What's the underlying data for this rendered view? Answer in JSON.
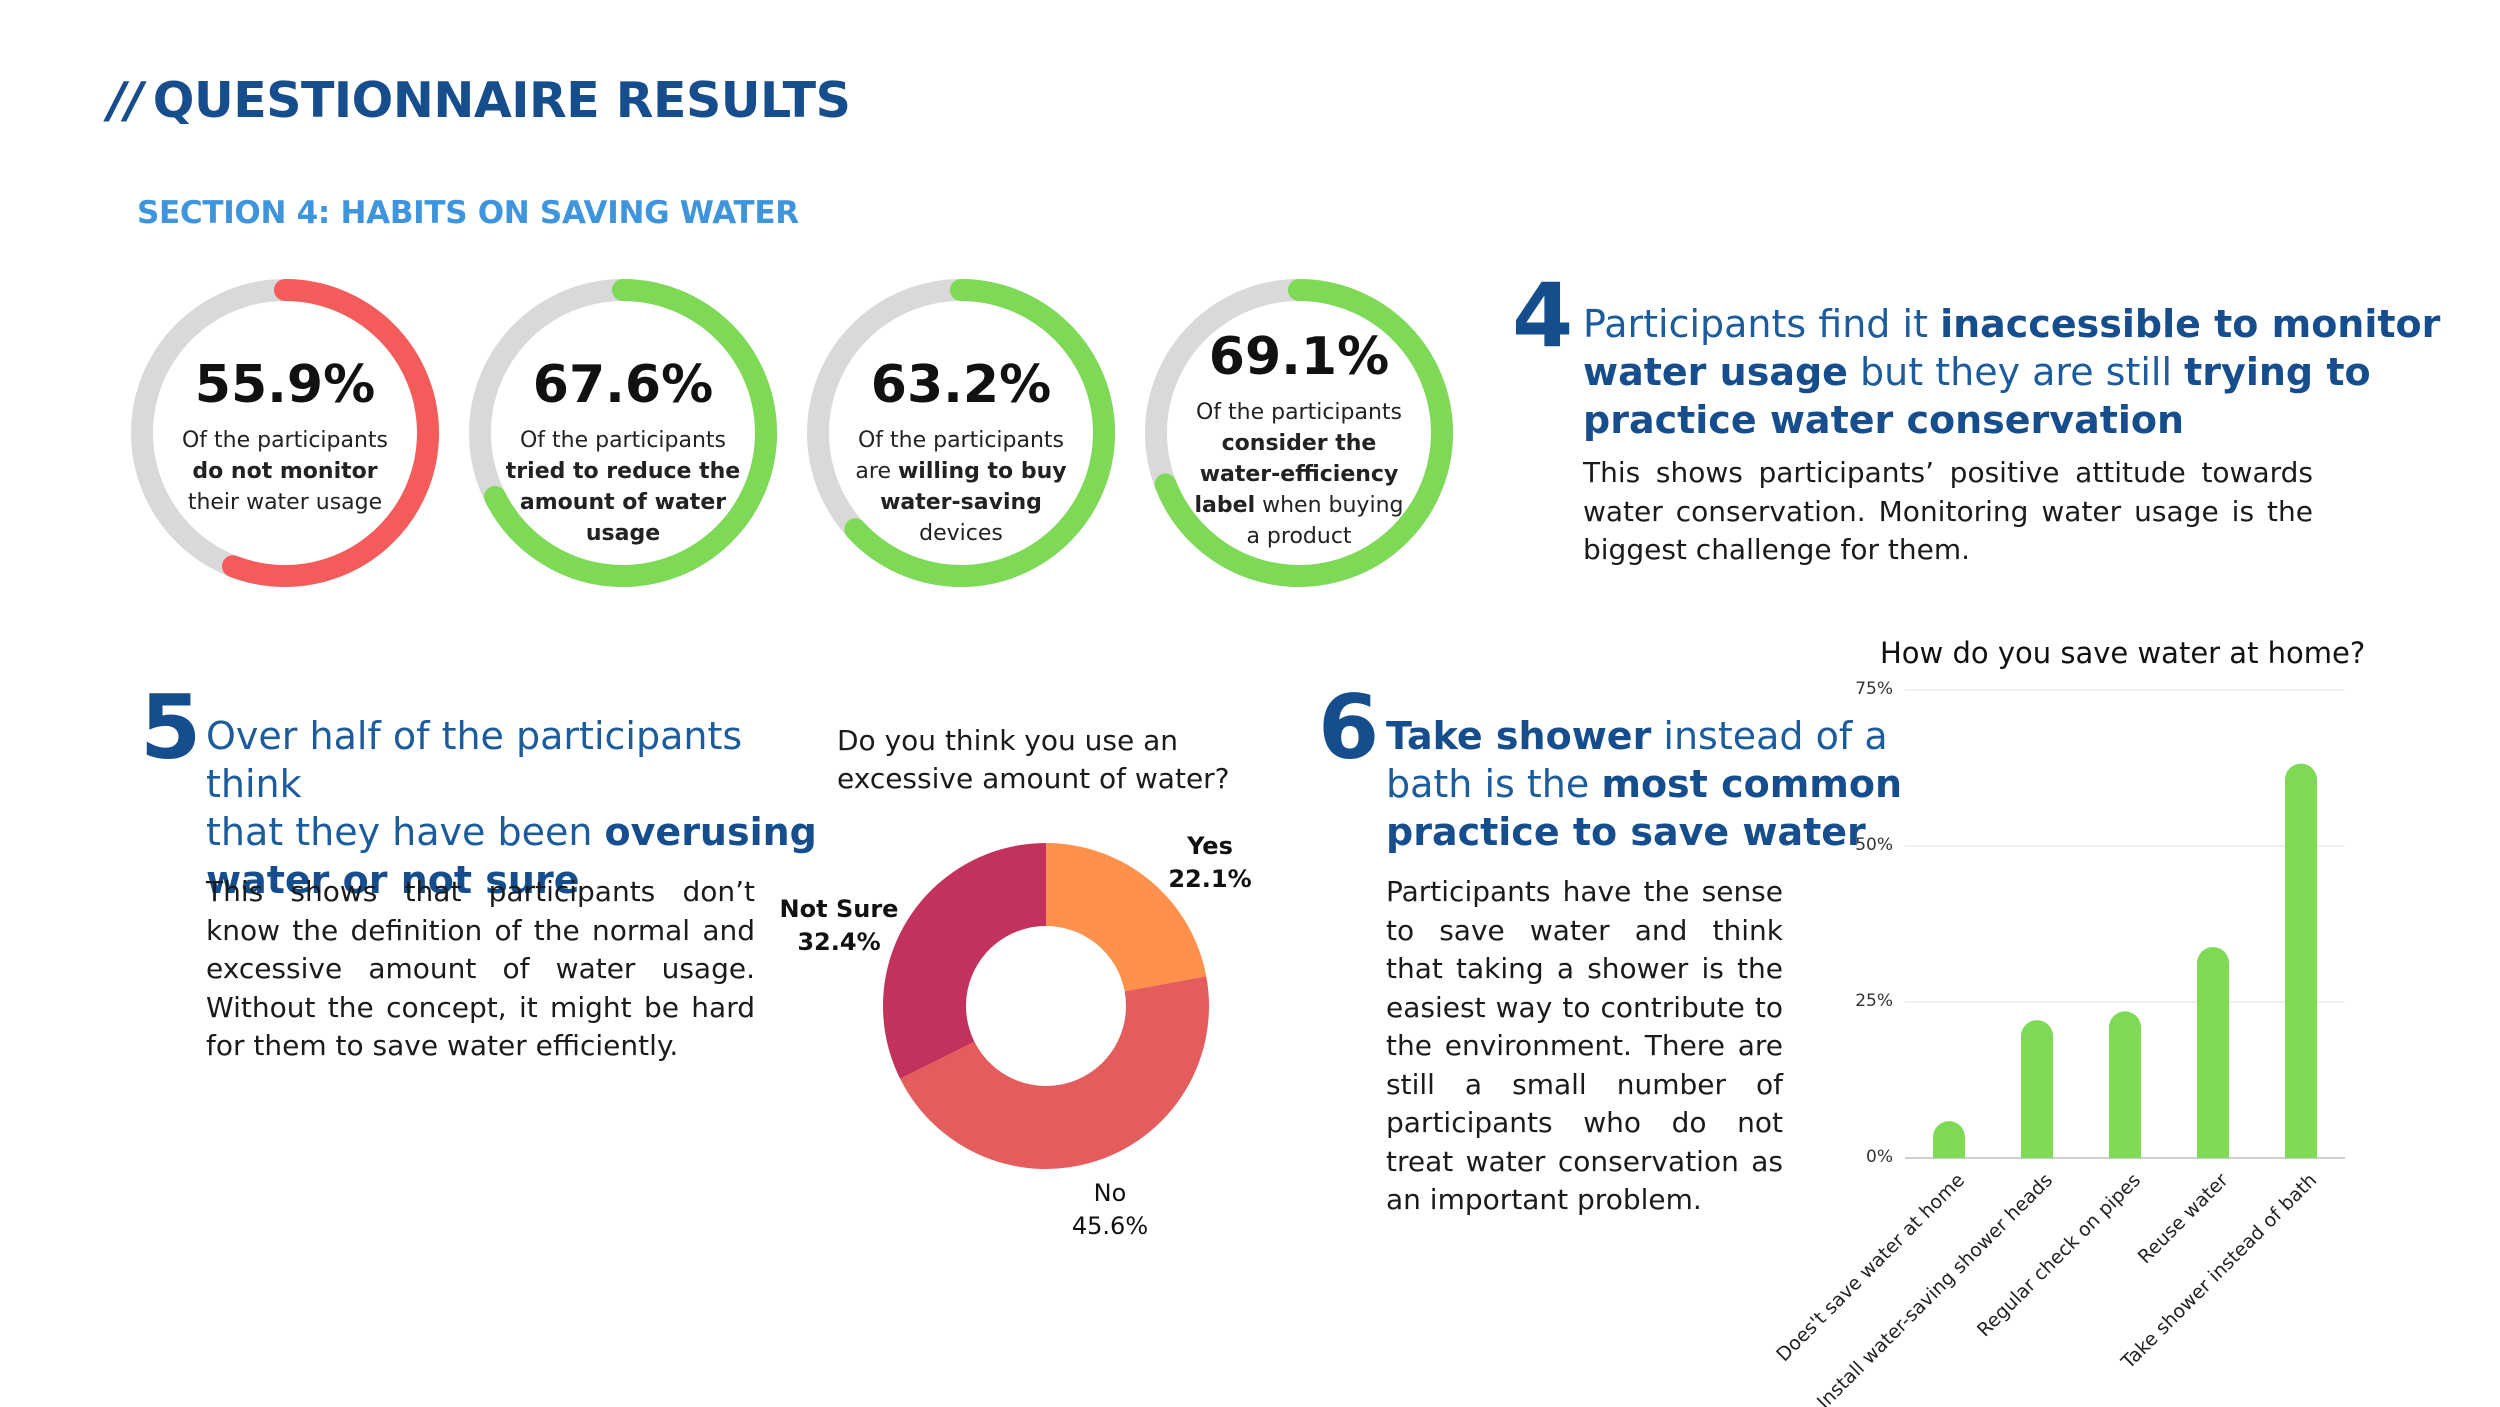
{
  "header": {
    "slashes": "//",
    "title": "QUESTIONNAIRE RESULTS",
    "section": "SECTION 4: HABITS ON SAVING WATER"
  },
  "colors": {
    "navy": "#154d8d",
    "sky": "#3f95dd",
    "red": "#f45b5b",
    "green": "#7ed957",
    "track": "#d9d9d9",
    "pie_yes": "#ff914d",
    "pie_no": "#e55c5c",
    "pie_notsure": "#c3325d"
  },
  "rings": [
    {
      "value": 55.9,
      "pct": "55.9%",
      "color": "red",
      "cap": [
        "Of the participants",
        "do not monitor",
        "their water usage"
      ],
      "bold": [
        1
      ]
    },
    {
      "value": 67.6,
      "pct": "67.6%",
      "color": "green",
      "cap": [
        "Of the participants",
        "tried to reduce the",
        "amount of water",
        "usage"
      ],
      "bold": [
        1,
        2,
        3
      ]
    },
    {
      "value": 63.2,
      "pct": "63.2%",
      "color": "green",
      "cap": [
        "Of the participants",
        "are willing to buy",
        "water-saving",
        "devices"
      ],
      "bold": []
    },
    {
      "value": 69.1,
      "pct": "69.1%",
      "color": "green",
      "cap": [
        "Of the participants",
        "consider the",
        "water-efficiency",
        "label when buying",
        "a product"
      ],
      "bold": [
        1,
        2
      ]
    }
  ],
  "ring_rich": {
    "r3_line2_pre": "are ",
    "r3_line2_bold": "willing to buy",
    "r3_line3": "water-saving",
    "r4_line4_bold": "label",
    "r4_line4_rest": " when buying"
  },
  "block4": {
    "number": "4",
    "h1": "Participants find it ",
    "h1b": "inaccessible to monitor",
    "h2b": "water usage",
    "h2": " but they are still ",
    "h2b2": "trying to",
    "h3b": "practice water conservation",
    "para": "This shows participants’ positive attitude towards water conservation. Monitoring water usage is the biggest challenge for them."
  },
  "block5": {
    "number": "5",
    "h1": "Over half of the participants think",
    "h2": "that they have been ",
    "h2b": "overusing",
    "h3b": "water or not sure",
    "para": "This shows that participants don’t know the definition of the normal and excessive amount of water usage. Without the concept, it might be hard for them to save water efficiently."
  },
  "block6": {
    "number": "6",
    "h1b": "Take shower",
    "h1": " instead of a",
    "h2": "bath is the ",
    "h2b": "most common",
    "h3b": "practice to save water",
    "para": "Participants have the sense to save water and think that taking a shower is the easiest way to contribute to the environment. There are still a small number of participants who do not treat water conservation as an important problem."
  },
  "chart_data": [
    {
      "type": "pie",
      "title": "Do you think you use an excessive amount of water?",
      "title_lines": [
        "Do you think you use an",
        "excessive amount of water?"
      ],
      "slices": [
        {
          "label": "Yes",
          "value": 22.1,
          "display": "22.1%",
          "color": "pie_yes"
        },
        {
          "label": "No",
          "value": 45.6,
          "display": "45.6%",
          "color": "pie_no"
        },
        {
          "label": "Not Sure",
          "value": 32.4,
          "display": "32.4%",
          "color": "pie_notsure"
        }
      ]
    },
    {
      "type": "bar",
      "title": "How do you save water at home?",
      "categories": [
        "Does't save water at home",
        "Install water-saving shower heads",
        "Regular check on pipes",
        "Reuse water",
        "Take shower instead of bath"
      ],
      "values": [
        5.9,
        22.1,
        23.5,
        33.8,
        63.2
      ],
      "ylim": [
        0,
        75
      ],
      "yticks": [
        "0%",
        "25%",
        "50%",
        "75%"
      ],
      "ytick_values": [
        0,
        25,
        50,
        75
      ],
      "grid": true,
      "color": "green"
    }
  ]
}
